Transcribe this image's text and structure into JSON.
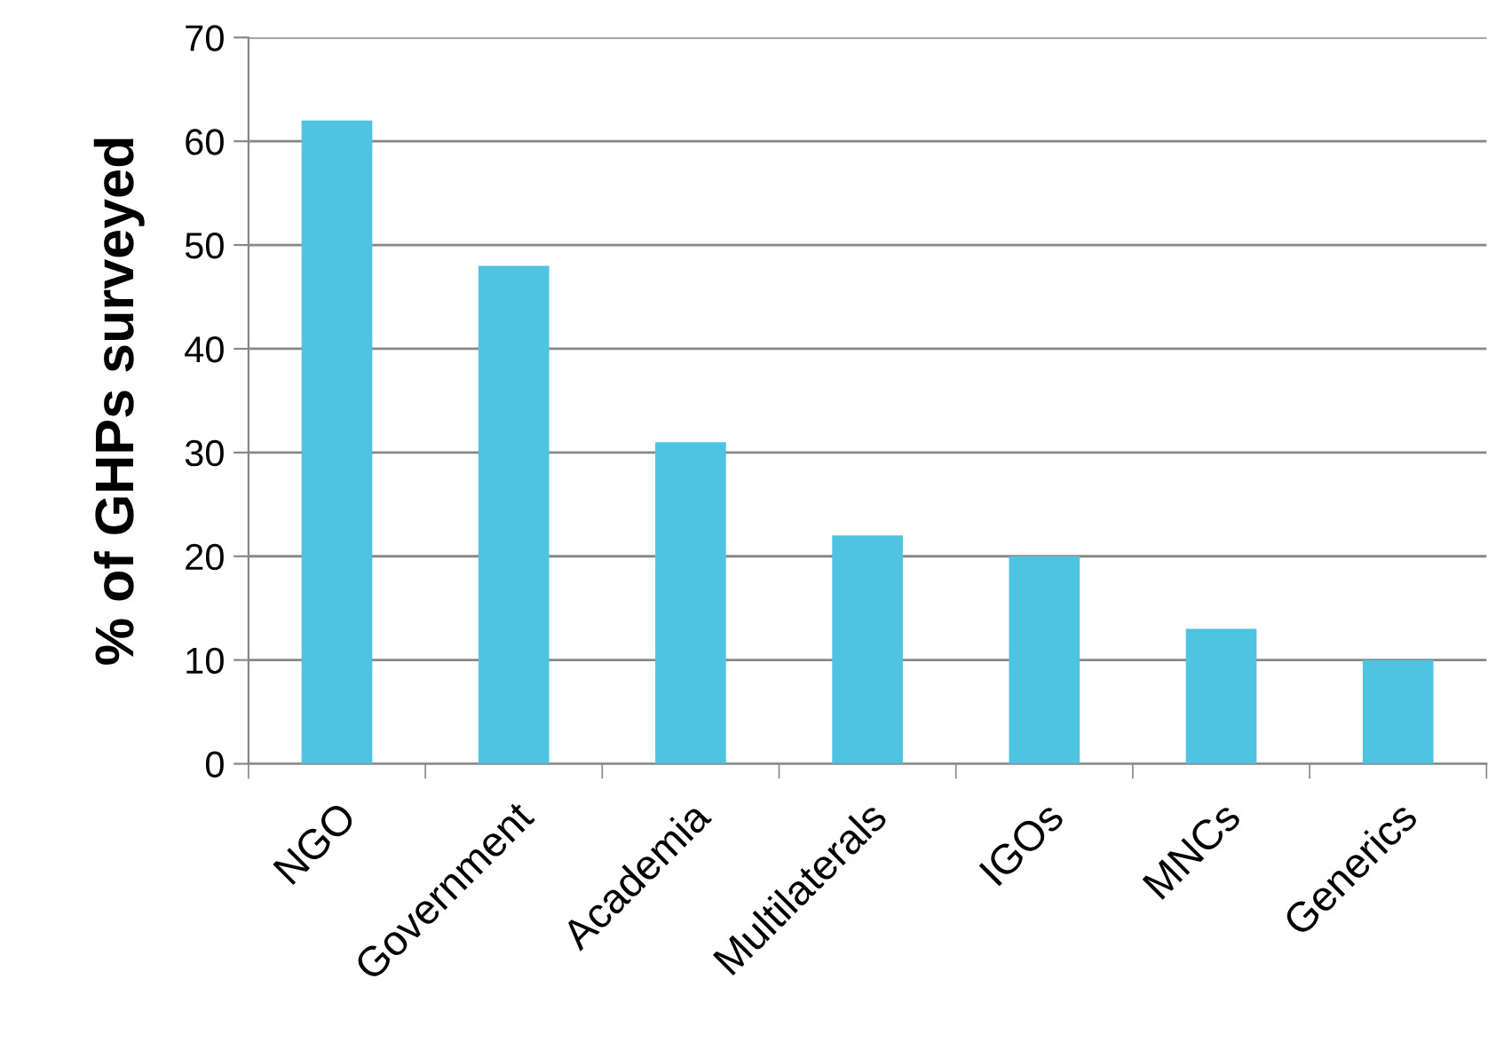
{
  "chart_data": {
    "type": "bar",
    "ylabel": "% of GHPs surveyed",
    "categories": [
      "NGO",
      "Government",
      "Academia",
      "Multilaterals",
      "IGOs",
      "MNCs",
      "Generics"
    ],
    "values": [
      62,
      48,
      31,
      22,
      20,
      13,
      10
    ],
    "color": "#4fc4e2",
    "ylim": [
      0,
      70
    ],
    "yticks": [
      0,
      10,
      20,
      30,
      40,
      50,
      60,
      70
    ],
    "grid": "y",
    "legend": false
  }
}
